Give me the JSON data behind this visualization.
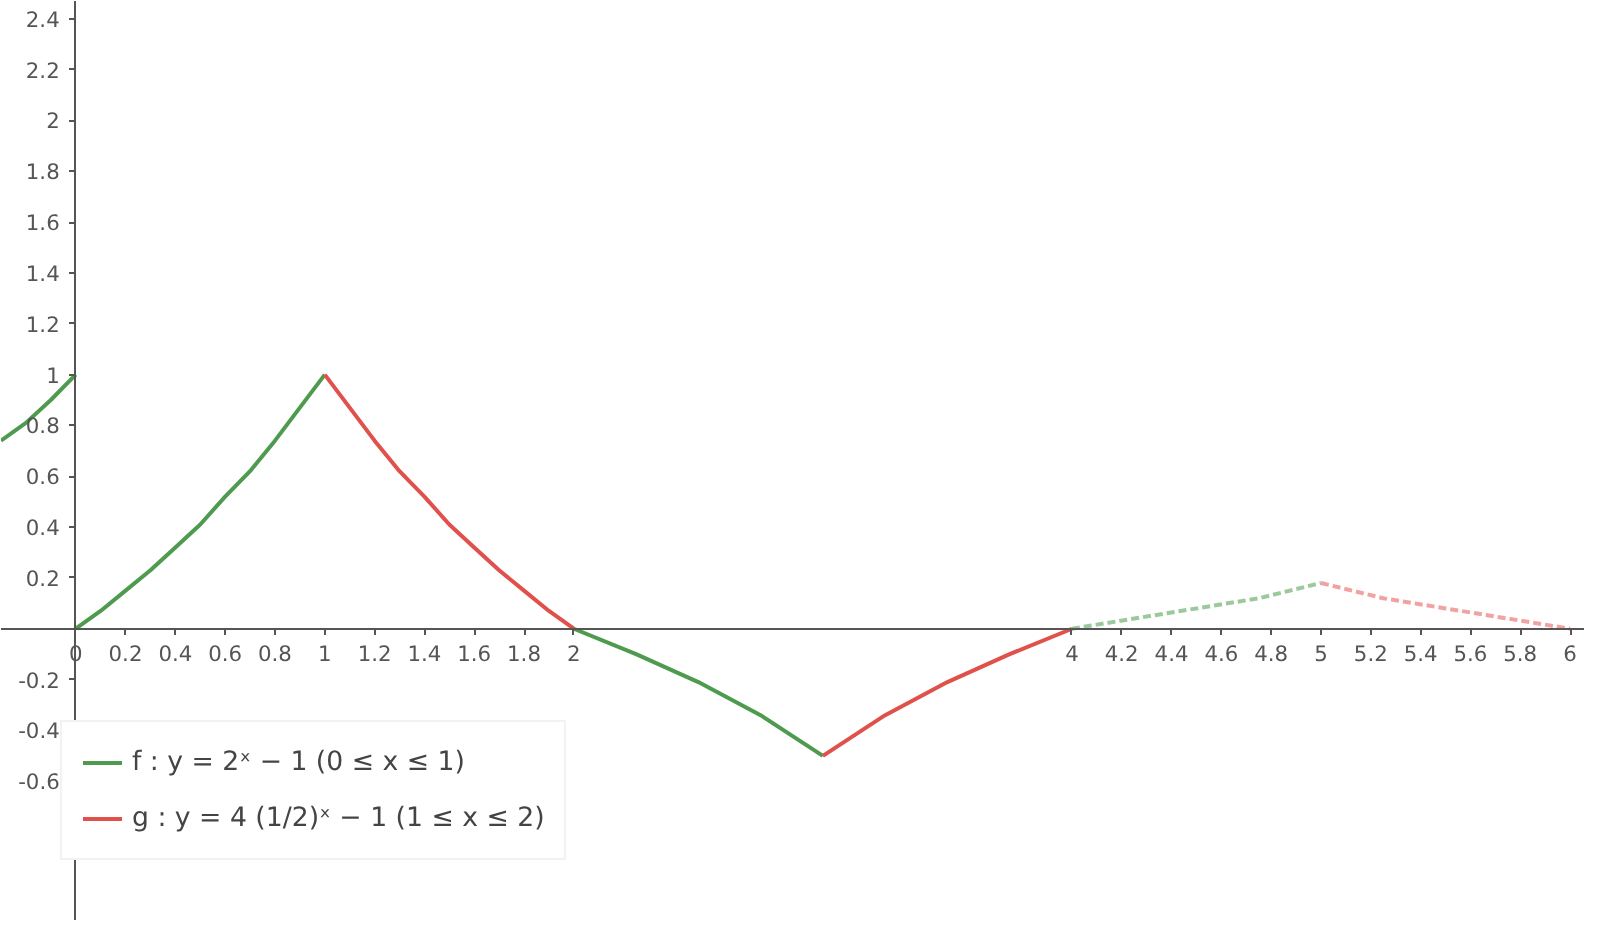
{
  "chart_data": {
    "type": "line",
    "xlim": [
      -0.3,
      6.06
    ],
    "ylim": [
      -1.15,
      2.47
    ],
    "xticks": [
      0,
      0.2,
      0.4,
      0.6,
      0.8,
      1,
      1.2,
      1.4,
      1.6,
      1.8,
      2,
      4,
      4.2,
      4.4,
      4.6,
      4.8,
      5,
      5.2,
      5.4,
      5.6,
      5.8,
      6
    ],
    "yticks": [
      -0.6,
      -0.4,
      -0.2,
      0.2,
      0.4,
      0.6,
      0.8,
      1,
      1.2,
      1.4,
      1.6,
      1.8,
      2,
      2.2,
      2.4
    ],
    "grid": false,
    "legend": "bottom left",
    "marker": "none",
    "series": [
      {
        "name": "f : y = 2ˣ − 1 (0 ≤ x ≤ 1)",
        "color": "#4e9a4e",
        "x": [
          0,
          0.1,
          0.2,
          0.3,
          0.4,
          0.5,
          0.6,
          0.7,
          0.8,
          0.9,
          1
        ],
        "values": [
          0,
          0.07,
          0.15,
          0.23,
          0.32,
          0.41,
          0.52,
          0.62,
          0.74,
          0.87,
          1
        ]
      },
      {
        "name": "g : y = 4 (1/2)ˣ − 1 (1 ≤ x ≤ 2)",
        "color": "#e0514b",
        "x": [
          1,
          1.1,
          1.2,
          1.3,
          1.4,
          1.5,
          1.6,
          1.7,
          1.8,
          1.9,
          2
        ],
        "values": [
          1,
          0.87,
          0.74,
          0.62,
          0.52,
          0.41,
          0.32,
          0.23,
          0.15,
          0.07,
          0
        ]
      },
      {
        "color": "#4e9a4e",
        "x": [
          -0.3,
          -0.2,
          -0.1,
          0
        ],
        "values": [
          0.74,
          0.81,
          0.9,
          1
        ]
      },
      {
        "color": "#4e9a4e",
        "x": [
          2,
          2.25,
          2.5,
          2.75,
          3
        ],
        "values": [
          0,
          -0.1,
          -0.21,
          -0.34,
          -0.5
        ]
      },
      {
        "color": "#e0514b",
        "x": [
          3,
          3.25,
          3.5,
          3.75,
          4
        ],
        "values": [
          -0.5,
          -0.34,
          -0.21,
          -0.1,
          0
        ]
      },
      {
        "color": "#9cc99c",
        "line_style": "dashed",
        "x": [
          4,
          4.25,
          4.5,
          4.75,
          5
        ],
        "values": [
          0,
          0.04,
          0.08,
          0.12,
          0.18
        ]
      },
      {
        "color": "#f0a3a0",
        "line_style": "dashed",
        "x": [
          5,
          5.25,
          5.5,
          5.75,
          6
        ],
        "values": [
          0.18,
          0.12,
          0.08,
          0.04,
          0
        ]
      }
    ]
  }
}
